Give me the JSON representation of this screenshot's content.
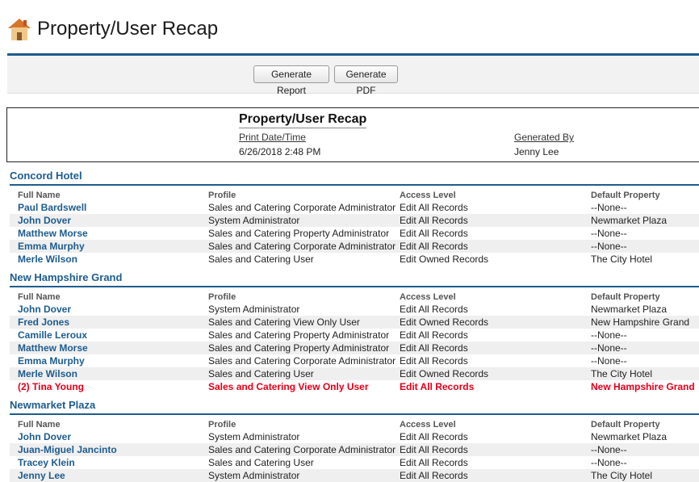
{
  "page": {
    "title": "Property/User Recap"
  },
  "toolbar": {
    "generate_report": "Generate Report",
    "generate_pdf": "Generate PDF"
  },
  "report_header": {
    "title": "Property/User Recap",
    "print_label": "Print Date/Time",
    "print_value": "6/26/2018 2:48 PM",
    "generated_label": "Generated By",
    "generated_value": "Jenny Lee"
  },
  "columns": [
    "Full Name",
    "Profile",
    "Access Level",
    "Default Property"
  ],
  "sections": [
    {
      "title": "Concord Hotel",
      "rows": [
        {
          "name": "Paul Bardswell",
          "profile": "Sales and Catering Corporate Administrator",
          "access": "Edit All Records",
          "default": "--None--"
        },
        {
          "name": "John Dover",
          "profile": "System Administrator",
          "access": "Edit All Records",
          "default": "Newmarket Plaza"
        },
        {
          "name": "Matthew Morse",
          "profile": "Sales and Catering Property Administrator",
          "access": "Edit All Records",
          "default": "--None--"
        },
        {
          "name": "Emma Murphy",
          "profile": "Sales and Catering Corporate Administrator",
          "access": "Edit All Records",
          "default": "--None--"
        },
        {
          "name": "Merle Wilson",
          "profile": "Sales and Catering User",
          "access": "Edit Owned Records",
          "default": "The City Hotel"
        }
      ]
    },
    {
      "title": "New Hampshire Grand",
      "rows": [
        {
          "name": "John Dover",
          "profile": "System Administrator",
          "access": "Edit All Records",
          "default": "Newmarket Plaza"
        },
        {
          "name": "Fred Jones",
          "profile": "Sales and Catering View Only User",
          "access": "Edit Owned Records",
          "default": "New Hampshire Grand"
        },
        {
          "name": "Camille Leroux",
          "profile": "Sales and Catering Property Administrator",
          "access": "Edit All Records",
          "default": "--None--"
        },
        {
          "name": "Matthew Morse",
          "profile": "Sales and Catering Property Administrator",
          "access": "Edit All Records",
          "default": "--None--"
        },
        {
          "name": "Emma Murphy",
          "profile": "Sales and Catering Corporate Administrator",
          "access": "Edit All Records",
          "default": "--None--"
        },
        {
          "name": "Merle Wilson",
          "profile": "Sales and Catering User",
          "access": "Edit Owned Records",
          "default": "The City Hotel"
        },
        {
          "name": "(2) Tina Young",
          "profile": "Sales and Catering View Only User",
          "access": "Edit All Records",
          "default": "New Hampshire Grand",
          "highlight": true
        }
      ]
    },
    {
      "title": "Newmarket Plaza",
      "rows": [
        {
          "name": "John Dover",
          "profile": "System Administrator",
          "access": "Edit All Records",
          "default": "Newmarket Plaza"
        },
        {
          "name": "Juan-Miguel Jancinto",
          "profile": "Sales and Catering Corporate Administrator",
          "access": "Edit All Records",
          "default": "--None--"
        },
        {
          "name": "Tracey Klein",
          "profile": "Sales and Catering User",
          "access": "Edit All Records",
          "default": "--None--"
        },
        {
          "name": "Jenny Lee",
          "profile": "System Administrator",
          "access": "Edit All Records",
          "default": "The City Hotel"
        }
      ]
    }
  ]
}
